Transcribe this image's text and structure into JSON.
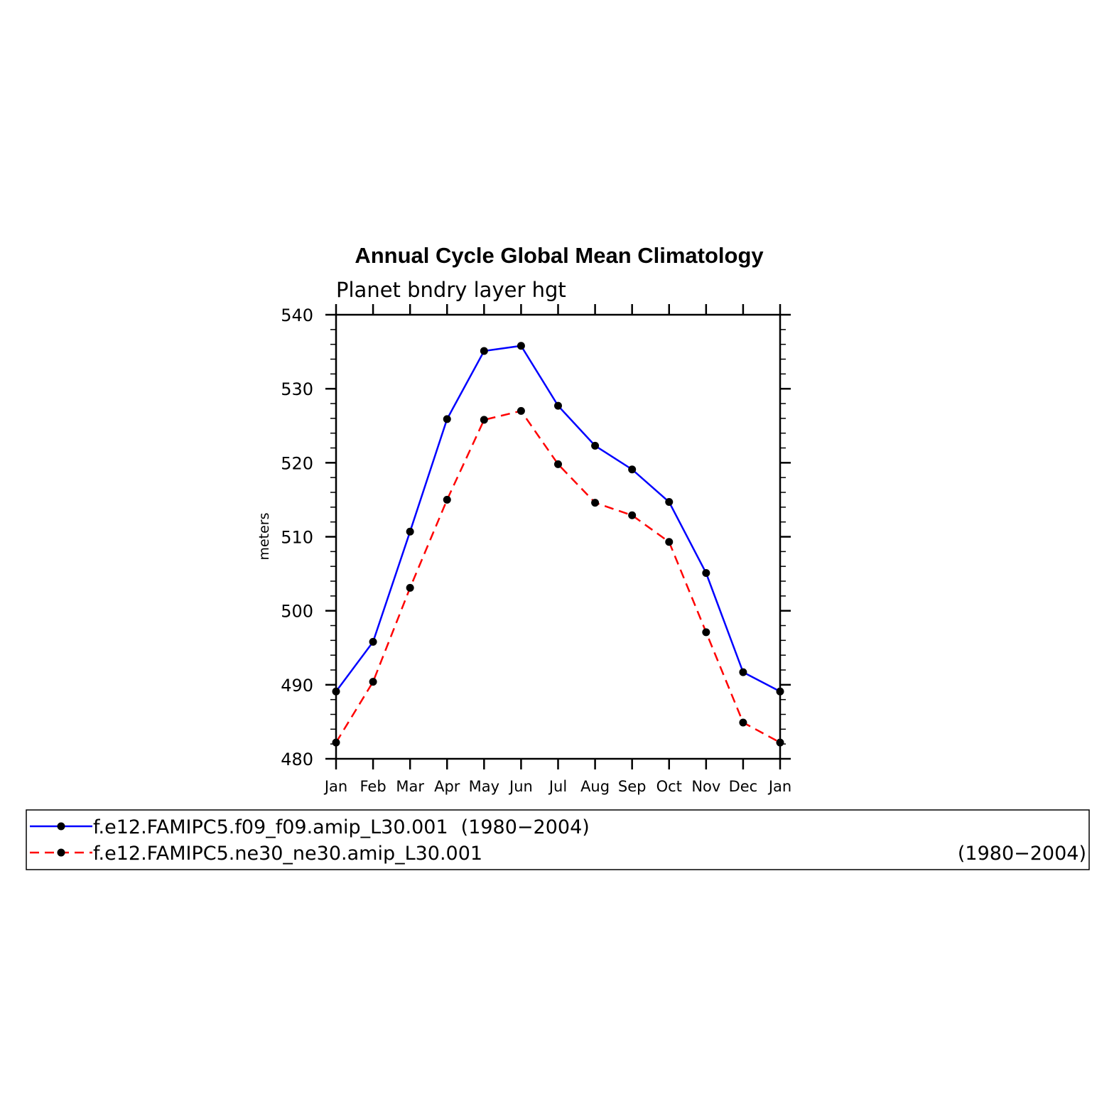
{
  "chart_data": {
    "type": "line",
    "title": "Annual Cycle Global Mean Climatology",
    "subtitle": "Planet bndry layer hgt",
    "xlabel": "",
    "ylabel": "meters",
    "ylim": [
      480,
      540
    ],
    "yticks": [
      "480",
      "490",
      "500",
      "510",
      "520",
      "530",
      "540"
    ],
    "categories": [
      "Jan",
      "Feb",
      "Mar",
      "Apr",
      "May",
      "Jun",
      "Jul",
      "Aug",
      "Sep",
      "Oct",
      "Nov",
      "Dec",
      "Jan"
    ],
    "grid": false,
    "legend_position": "bottom",
    "series": [
      {
        "name": "f.e12.FAMIPC5.f09_f09.amip_L30.001",
        "years": "(1980−2004)",
        "color": "#0000ff",
        "dash": "solid",
        "marker": "filled-circle",
        "values": [
          489.1,
          495.8,
          510.7,
          525.9,
          535.1,
          535.8,
          527.7,
          522.3,
          519.1,
          514.7,
          505.1,
          491.7,
          489.1
        ]
      },
      {
        "name": "f.e12.FAMIPC5.ne30_ne30.amip_L30.001",
        "years": "(1980−2004)",
        "color": "#ff0000",
        "dash": "dashed",
        "marker": "filled-circle",
        "values": [
          482.2,
          490.4,
          503.1,
          515.0,
          525.8,
          527.0,
          519.8,
          514.6,
          512.9,
          509.3,
          497.1,
          484.9,
          482.2
        ]
      }
    ]
  }
}
